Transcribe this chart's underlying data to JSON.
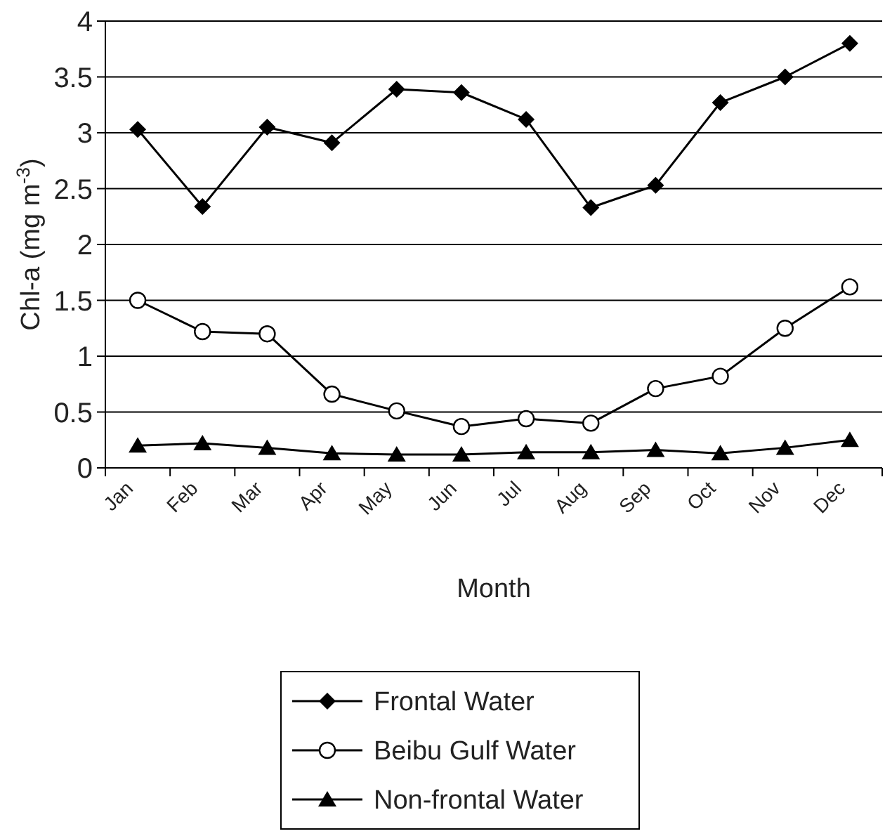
{
  "chart_data": {
    "type": "line",
    "xlabel": "Month",
    "ylabel": "Chl-a (mg m$^{-3}$)",
    "categories": [
      "Jan",
      "Feb",
      "Mar",
      "Apr",
      "May",
      "Jun",
      "Jul",
      "Aug",
      "Sep",
      "Oct",
      "Nov",
      "Dec"
    ],
    "series": [
      {
        "name": "Frontal Water",
        "color": "#000000",
        "marker": "diamond",
        "values": [
          3.03,
          2.34,
          3.05,
          2.91,
          3.39,
          3.36,
          3.12,
          2.33,
          2.53,
          3.27,
          3.5,
          3.8
        ]
      },
      {
        "name": "Beibu Gulf Water",
        "color": "#000000",
        "marker": "circle",
        "values": [
          1.5,
          1.22,
          1.2,
          0.66,
          0.51,
          0.37,
          0.44,
          0.4,
          0.71,
          0.82,
          1.25,
          1.62
        ]
      },
      {
        "name": "Non-frontal Water",
        "color": "#000000",
        "marker": "triangle",
        "values": [
          0.2,
          0.22,
          0.18,
          0.13,
          0.12,
          0.12,
          0.14,
          0.14,
          0.16,
          0.13,
          0.18,
          0.25
        ]
      }
    ],
    "ylim": [
      0,
      4
    ],
    "yticks": [
      0,
      0.5,
      1,
      1.5,
      2,
      2.5,
      3,
      3.5,
      4
    ],
    "grid": "y",
    "legend": "bottom",
    "line_style": "solid"
  }
}
